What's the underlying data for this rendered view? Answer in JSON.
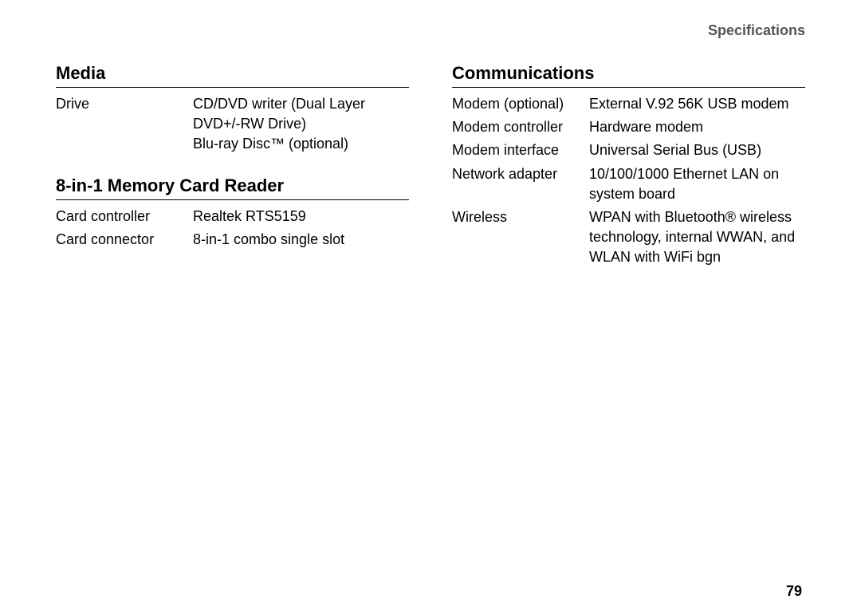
{
  "header": "Specifications",
  "pageNumber": "79",
  "left": {
    "section1": {
      "title": "Media",
      "rows": [
        {
          "label": "Drive",
          "value": "CD/DVD writer (Dual Layer DVD+/-RW Drive)\nBlu-ray Disc™ (optional)"
        }
      ]
    },
    "section2": {
      "title": "8-in-1 Memory Card Reader",
      "rows": [
        {
          "label": "Card controller",
          "value": "Realtek RTS5159"
        },
        {
          "label": "Card connector",
          "value": "8-in-1 combo single slot"
        }
      ]
    }
  },
  "right": {
    "section1": {
      "title": "Communications",
      "rows": [
        {
          "label": "Modem (optional)",
          "value": "External V.92 56K USB modem"
        },
        {
          "label": "Modem controller",
          "value": "Hardware modem"
        },
        {
          "label": "Modem interface",
          "value": "Universal Serial Bus (USB)"
        },
        {
          "label": "Network adapter",
          "value": "10/100/1000 Ethernet LAN on system board"
        },
        {
          "label": "Wireless",
          "value": "WPAN with Bluetooth® wireless technology, internal WWAN, and WLAN with WiFi bgn"
        }
      ]
    }
  }
}
